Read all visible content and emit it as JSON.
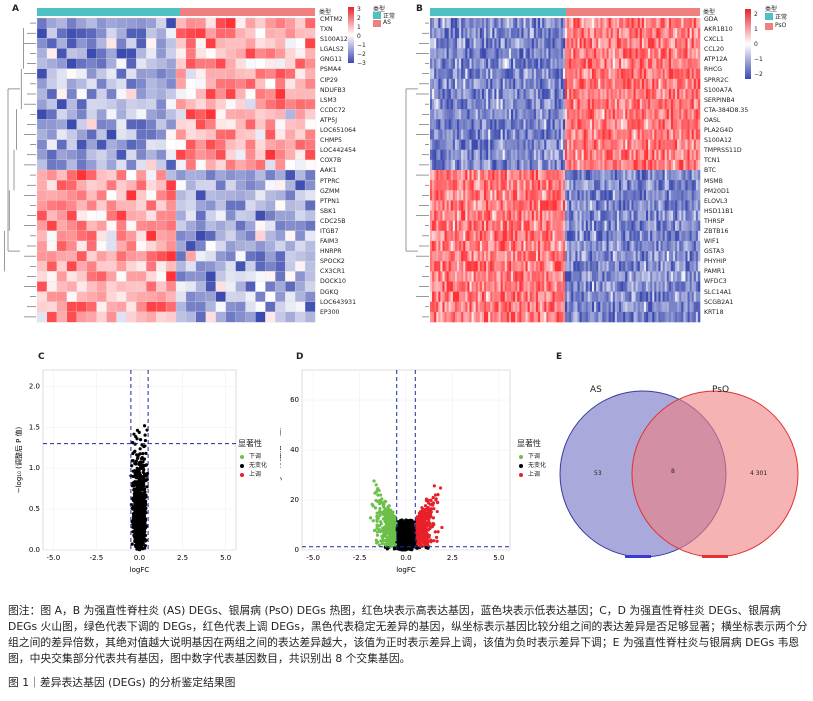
{
  "panels": {
    "A": {
      "label": "A",
      "legend_title": "类型",
      "groups": [
        "正常",
        "AS"
      ],
      "group_colors": [
        "#4fc1c3",
        "#f08080"
      ],
      "scale_ticks": [
        "3",
        "2",
        "1",
        "0",
        "−1",
        "−2",
        "−3"
      ],
      "col_header": "类型",
      "genes": [
        "CMTM2",
        "TXN",
        "S100A12",
        "LGALS2",
        "GNG11",
        "PSMA4",
        "CIP29",
        "NDUFB3",
        "LSM3",
        "CCDC72",
        "ATP5J",
        "LOC651064",
        "CHMP5",
        "LOC442454",
        "COX7B",
        "AAK1",
        "PTPRC",
        "GZMM",
        "PTPN1",
        "SBK1",
        "CDC25B",
        "ITGB7",
        "FAIM3",
        "HNRPR",
        "SPOCK2",
        "CX3CR1",
        "DOCK10",
        "DGKQ",
        "LOC643931",
        "EP300"
      ]
    },
    "B": {
      "label": "B",
      "legend_title": "类型",
      "groups": [
        "正常",
        "PsO"
      ],
      "group_colors": [
        "#4fc1c3",
        "#f08080"
      ],
      "scale_ticks": [
        "2",
        "1",
        "0",
        "−1",
        "−2"
      ],
      "col_header": "类型",
      "genes": [
        "GDA",
        "AKR1B10",
        "CXCL1",
        "CCL20",
        "ATP12A",
        "RHCG",
        "SPRR2C",
        "S100A7A",
        "SERPINB4",
        "CTA-384D8.35",
        "OASL",
        "PLA2G4D",
        "S100A12",
        "TMPRSS11D",
        "TCN1",
        "BTC",
        "MSMB",
        "PM20D1",
        "ELOVL3",
        "HSD11B1",
        "THRSP",
        "ZBTB16",
        "WIF1",
        "GSTA3",
        "PHYHIP",
        "PAMR1",
        "WFDC3",
        "SLC14A1",
        "SCGB2A1",
        "KRT18"
      ]
    },
    "C": {
      "label": "C",
      "xlabel": "logFC",
      "ylabel": "−log₁₀ (调整后 P 值)",
      "xticks": [
        "-5.0",
        "-2.5",
        "0.0",
        "2.5",
        "5.0"
      ],
      "yticks": [
        "0.0",
        "0.5",
        "1.0",
        "1.5",
        "2.0"
      ],
      "legend_title": "显著性",
      "legend_items": [
        "下调",
        "无变化",
        "上调"
      ],
      "legend_colors": [
        "#6cc04a",
        "#000000",
        "#e8202a"
      ]
    },
    "D": {
      "label": "D",
      "xlabel": "logFC",
      "ylabel": "−log₁₀ (调整后 P 值)",
      "xticks": [
        "-5.0",
        "-2.5",
        "0.0",
        "2.5",
        "5.0"
      ],
      "yticks": [
        "0",
        "20",
        "40",
        "60"
      ],
      "legend_title": "显著性",
      "legend_items": [
        "下调",
        "无变化",
        "上调"
      ],
      "legend_colors": [
        "#6cc04a",
        "#000000",
        "#e8202a"
      ]
    },
    "E": {
      "label": "E",
      "set_left": "AS",
      "set_right": "PsO",
      "left_only": "53",
      "overlap": "8",
      "right_only": "4 301",
      "left_color": "#9a9ad6",
      "right_color": "#f0a0a0"
    }
  },
  "caption": "图注：图 A，B 为强直性脊柱炎 (AS) DEGs、银屑病 (PsO) DEGs 热图，红色块表示高表达基因，蓝色块表示低表达基因；C，D 为强直性脊柱炎 DEGs、银屑病 DEGs 火山图，绿色代表下调的 DEGs，红色代表上调 DEGs，黑色代表稳定无差异的基因，纵坐标表示基因比较分组之间的表达差异是否足够显著；横坐标表示两个分组之间的差异倍数，其绝对值越大说明基因在两组之间的表达差异越大，该值为正时表示差异上调，该值为负时表示差异下调；E 为强直性脊柱炎与银屑病 DEGs 韦恩图，中央交集部分代表共有基因，图中数字代表基因数目，共识别出 8 个交集基因。",
  "figure_title": "图 1｜差异表达基因 (DEGs) 的分析鉴定结果图"
}
